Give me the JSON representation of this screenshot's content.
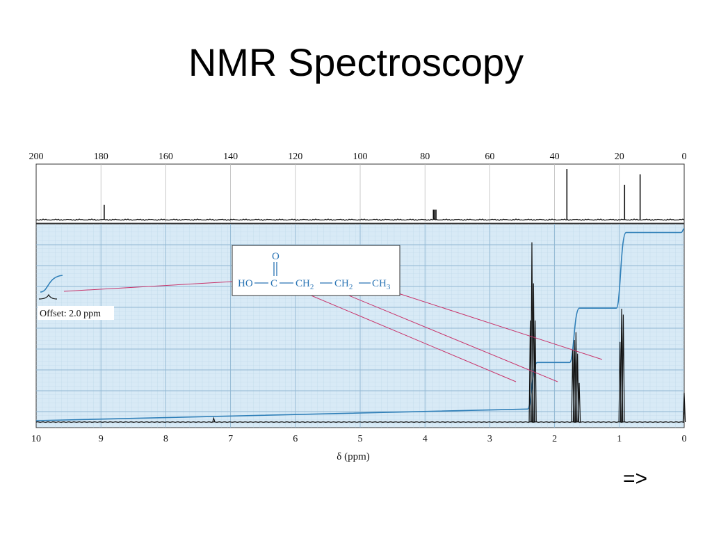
{
  "title": "NMR Spectroscopy",
  "next_label": "=>",
  "chart_data": {
    "type": "line",
    "carbon_panel": {
      "axis_label": "",
      "xlim": [
        200,
        0
      ],
      "ticks": [
        200,
        180,
        160,
        140,
        120,
        100,
        80,
        60,
        40,
        20,
        0
      ],
      "peaks": [
        {
          "ppm": 179.0,
          "height": 0.28
        },
        {
          "ppm": 77.4,
          "height": 0.19
        },
        {
          "ppm": 77.0,
          "height": 0.19
        },
        {
          "ppm": 76.6,
          "height": 0.19
        },
        {
          "ppm": 36.2,
          "height": 0.96
        },
        {
          "ppm": 18.4,
          "height": 0.66
        },
        {
          "ppm": 13.6,
          "height": 0.86
        }
      ]
    },
    "proton_panel": {
      "xlabel": "δ (ppm)",
      "xlim": [
        10,
        0
      ],
      "ticks": [
        10,
        9,
        8,
        7,
        6,
        5,
        4,
        3,
        2,
        1,
        0
      ],
      "peaks": [
        {
          "ppm": 2.35,
          "height": 0.92
        },
        {
          "ppm": 2.325,
          "height": 0.71
        },
        {
          "ppm": 2.3,
          "height": 0.52
        },
        {
          "ppm": 2.375,
          "height": 0.52
        },
        {
          "ppm": 1.72,
          "height": 0.37
        },
        {
          "ppm": 1.695,
          "height": 0.42
        },
        {
          "ppm": 1.67,
          "height": 0.46
        },
        {
          "ppm": 1.645,
          "height": 0.35
        },
        {
          "ppm": 1.62,
          "height": 0.2
        },
        {
          "ppm": 0.99,
          "height": 0.41
        },
        {
          "ppm": 0.965,
          "height": 0.58
        },
        {
          "ppm": 0.94,
          "height": 0.55
        },
        {
          "ppm": 7.26,
          "height": 0.02
        },
        {
          "ppm": 0.0,
          "height": 0.15
        }
      ],
      "integral_levels": [
        {
          "ppm": 2.33,
          "level_from": 0.06,
          "level_to": 0.3
        },
        {
          "ppm": 1.68,
          "level_from": 0.3,
          "level_to": 0.58
        },
        {
          "ppm": 0.96,
          "level_from": 0.58,
          "level_to": 0.97
        }
      ],
      "inset_label": "Offset: 2.0 ppm",
      "grid": true
    },
    "structure": {
      "top_label": "O",
      "ho": "HO",
      "c": "C",
      "ch2": "CH",
      "sub2": "2",
      "ch3": "CH",
      "sub3": "3"
    }
  }
}
